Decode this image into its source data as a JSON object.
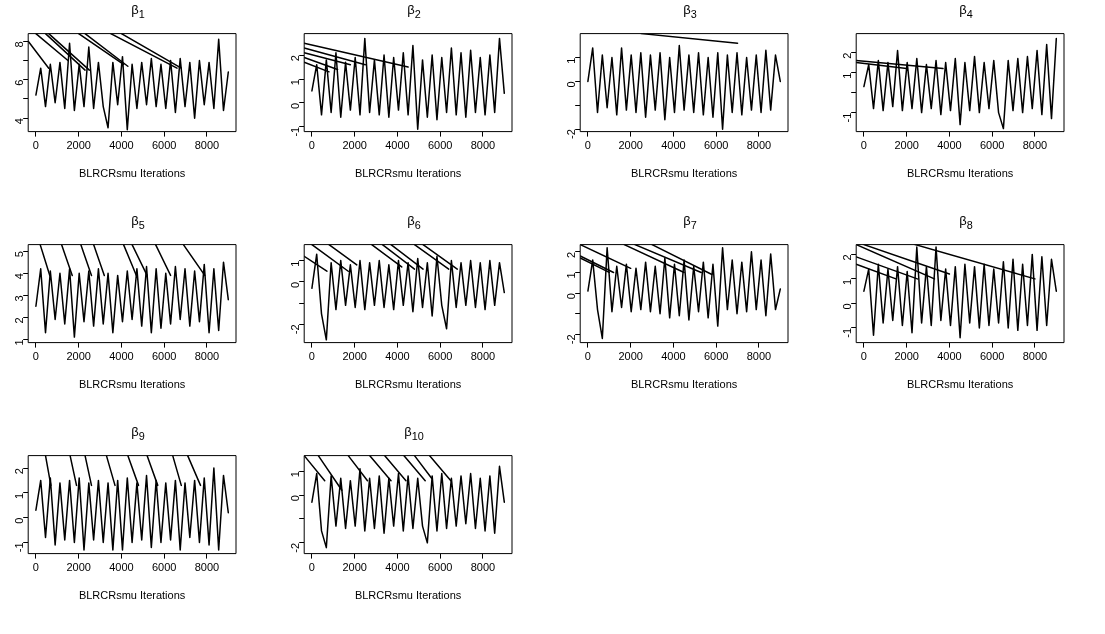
{
  "chart_data": [
    {
      "type": "line",
      "title": "β$_{1}$",
      "xlabel": "BLRCRsmu Iterations",
      "xlim": [
        -360,
        9360
      ],
      "xticks": [
        0,
        2000,
        4000,
        6000,
        8000
      ],
      "ylim": [
        3.3,
        8.4
      ],
      "yticks": [
        4,
        {
          "value": 5,
          "label": null
        },
        6,
        {
          "value": 7,
          "label": null
        },
        8
      ],
      "x": [
        0,
        225,
        450,
        675,
        900,
        1125,
        1350,
        1575,
        1800,
        2025,
        2250,
        2475,
        2700,
        2925,
        3150,
        3375,
        3600,
        3825,
        4050,
        4275,
        4500,
        4725,
        4950,
        5175,
        5400,
        5625,
        5850,
        6075,
        6300,
        6525,
        6750,
        6975,
        7200,
        7425,
        7650,
        7875,
        8100,
        8325,
        8550,
        8775,
        9000
      ],
      "series": [
        {
          "color": "#000000",
          "values": [
            5.2,
            6.6,
            4.6,
            6.8,
            4.8,
            6.9,
            4.5,
            7.9,
            4.4,
            6.8,
            4.6,
            7.7,
            4.5,
            6.9,
            4.6,
            3.5,
            6.9,
            4.7,
            7.2,
            3.4,
            6.8,
            4.5,
            6.9,
            4.7,
            7.1,
            4.6,
            6.8,
            4.5,
            7.0,
            4.3,
            7.1,
            4.6,
            6.9,
            4.0,
            7.0,
            4.7,
            6.9,
            4.5,
            8.1,
            4.4,
            6.4
          ]
        },
        {
          "type": "line",
          "color": "#000000",
          "x": [
            -360,
            600
          ],
          "values": [
            8.0,
            6.6
          ]
        },
        {
          "type": "line",
          "color": "#000000",
          "x": [
            0,
            1500
          ],
          "values": [
            8.4,
            7.0
          ]
        },
        {
          "type": "line",
          "color": "#000000",
          "x": [
            450,
            2300
          ],
          "values": [
            8.4,
            6.5
          ]
        },
        {
          "type": "line",
          "color": "#000000",
          "x": [
            600,
            2500
          ],
          "values": [
            8.4,
            6.5
          ]
        },
        {
          "type": "line",
          "color": "#000000",
          "x": [
            2000,
            4100
          ],
          "values": [
            8.4,
            6.8
          ]
        },
        {
          "type": "line",
          "color": "#000000",
          "x": [
            2300,
            4300
          ],
          "values": [
            8.4,
            6.7
          ]
        },
        {
          "type": "line",
          "color": "#000000",
          "x": [
            3500,
            6600
          ],
          "values": [
            8.4,
            6.6
          ]
        },
        {
          "type": "line",
          "color": "#000000",
          "x": [
            4000,
            6800
          ],
          "values": [
            8.4,
            6.6
          ]
        }
      ]
    },
    {
      "type": "line",
      "title": "β$_{2}$",
      "xlabel": "BLRCRsmu Iterations",
      "xlim": [
        -360,
        9360
      ],
      "xticks": [
        0,
        2000,
        4000,
        6000,
        8000
      ],
      "ylim": [
        -1.2,
        2.9
      ],
      "yticks": [
        -1,
        0,
        1,
        2
      ],
      "x": [
        0,
        225,
        450,
        675,
        900,
        1125,
        1350,
        1575,
        1800,
        2025,
        2250,
        2475,
        2700,
        2925,
        3150,
        3375,
        3600,
        3825,
        4050,
        4275,
        4500,
        4725,
        4950,
        5175,
        5400,
        5625,
        5850,
        6075,
        6300,
        6525,
        6750,
        6975,
        7200,
        7425,
        7650,
        7875,
        8100,
        8325,
        8550,
        8775,
        9000
      ],
      "series": [
        {
          "color": "#000000",
          "values": [
            0.5,
            1.6,
            -0.5,
            1.8,
            -0.4,
            2.1,
            -0.6,
            1.7,
            -0.3,
            1.9,
            -0.5,
            2.7,
            -0.4,
            1.8,
            -0.5,
            2.0,
            -0.6,
            1.9,
            -0.3,
            2.1,
            -0.5,
            2.4,
            -1.1,
            1.8,
            -0.6,
            2.0,
            -0.7,
            1.9,
            -0.4,
            2.3,
            -0.5,
            2.1,
            -0.6,
            2.2,
            -0.4,
            1.9,
            -0.5,
            2.0,
            -0.4,
            2.7,
            0.4
          ]
        },
        {
          "type": "line",
          "color": "#000000",
          "x": [
            -360,
            4500
          ],
          "values": [
            2.5,
            1.5
          ]
        },
        {
          "type": "line",
          "color": "#000000",
          "x": [
            -360,
            2500
          ],
          "values": [
            2.3,
            1.6
          ]
        },
        {
          "type": "line",
          "color": "#000000",
          "x": [
            -360,
            1800
          ],
          "values": [
            2.1,
            1.6
          ]
        },
        {
          "type": "line",
          "color": "#000000",
          "x": [
            -360,
            1200
          ],
          "values": [
            1.9,
            1.4
          ]
        },
        {
          "type": "line",
          "color": "#000000",
          "x": [
            -360,
            800
          ],
          "values": [
            1.7,
            1.3
          ]
        }
      ]
    },
    {
      "type": "line",
      "title": "β$_{3}$",
      "xlabel": "BLRCRsmu Iterations",
      "xlim": [
        -360,
        9360
      ],
      "xticks": [
        0,
        2000,
        4000,
        6000,
        8000
      ],
      "ylim": [
        -2.1,
        2.0
      ],
      "yticks": [
        -2,
        {
          "value": -1,
          "label": null
        },
        0,
        1
      ],
      "x": [
        0,
        225,
        450,
        675,
        900,
        1125,
        1350,
        1575,
        1800,
        2025,
        2250,
        2475,
        2700,
        2925,
        3150,
        3375,
        3600,
        3825,
        4050,
        4275,
        4500,
        4725,
        4950,
        5175,
        5400,
        5625,
        5850,
        6075,
        6300,
        6525,
        6750,
        6975,
        7200,
        7425,
        7650,
        7875,
        8100,
        8325,
        8550,
        8775,
        9000
      ],
      "series": [
        {
          "color": "#000000",
          "values": [
            0.0,
            1.4,
            -1.3,
            1.1,
            -1.1,
            1.0,
            -1.4,
            1.4,
            -1.2,
            1.1,
            -1.3,
            1.2,
            -1.5,
            1.1,
            -1.2,
            1.2,
            -1.6,
            1.0,
            -1.3,
            1.5,
            -1.2,
            1.1,
            -1.3,
            1.2,
            -1.4,
            1.0,
            -1.5,
            1.2,
            -2.0,
            1.1,
            -1.3,
            1.2,
            -1.4,
            1.0,
            -1.2,
            1.1,
            -1.3,
            1.3,
            -1.2,
            1.1,
            0.0
          ]
        },
        {
          "type": "line",
          "color": "#000000",
          "x": [
            2500,
            7000
          ],
          "values": [
            2.0,
            1.6
          ]
        }
      ]
    },
    {
      "type": "line",
      "title": "β$_{4}$",
      "xlabel": "BLRCRsmu Iterations",
      "xlim": [
        -360,
        9360
      ],
      "xticks": [
        0,
        2000,
        4000,
        6000,
        8000
      ],
      "ylim": [
        -1.95,
        2.95
      ],
      "yticks": [
        -1,
        {
          "value": 0,
          "label": null
        },
        1,
        2
      ],
      "x": [
        0,
        225,
        450,
        675,
        900,
        1125,
        1350,
        1575,
        1800,
        2025,
        2250,
        2475,
        2700,
        2925,
        3150,
        3375,
        3600,
        3825,
        4050,
        4275,
        4500,
        4725,
        4950,
        5175,
        5400,
        5625,
        5850,
        6075,
        6300,
        6525,
        6750,
        6975,
        7200,
        7425,
        7650,
        7875,
        8100,
        8325,
        8550,
        8775,
        9000
      ],
      "series": [
        {
          "color": "#000000",
          "values": [
            0.3,
            1.4,
            -0.8,
            1.6,
            -0.9,
            1.5,
            -0.7,
            2.1,
            -0.9,
            1.5,
            -0.8,
            1.7,
            -1.0,
            1.4,
            -0.8,
            1.6,
            -1.1,
            1.5,
            -0.9,
            1.7,
            -1.6,
            1.5,
            -0.9,
            1.8,
            -1.0,
            1.5,
            -0.8,
            1.6,
            -1.0,
            -1.8,
            1.6,
            -0.9,
            1.7,
            -1.0,
            1.8,
            -0.8,
            2.1,
            -1.1,
            2.4,
            -1.3,
            2.7
          ]
        },
        {
          "type": "line",
          "color": "#000000",
          "x": [
            -360,
            3700
          ],
          "values": [
            1.6,
            1.2
          ]
        },
        {
          "type": "line",
          "color": "#000000",
          "x": [
            -360,
            2000
          ],
          "values": [
            1.5,
            1.2
          ]
        }
      ]
    },
    {
      "type": "line",
      "title": "β$_{5}$",
      "xlabel": "BLRCRsmu Iterations",
      "xlim": [
        -360,
        9360
      ],
      "xticks": [
        0,
        2000,
        4000,
        6000,
        8000
      ],
      "ylim": [
        0.85,
        5.3
      ],
      "yticks": [
        1,
        2,
        3,
        4,
        5
      ],
      "x": [
        0,
        225,
        450,
        675,
        900,
        1125,
        1350,
        1575,
        1800,
        2025,
        2250,
        2475,
        2700,
        2925,
        3150,
        3375,
        3600,
        3825,
        4050,
        4275,
        4500,
        4725,
        4950,
        5175,
        5400,
        5625,
        5850,
        6075,
        6300,
        6525,
        6750,
        6975,
        7200,
        7425,
        7650,
        7875,
        8100,
        8325,
        8550,
        8775,
        9000
      ],
      "series": [
        {
          "color": "#000000",
          "values": [
            2.5,
            4.2,
            1.3,
            4.1,
            1.9,
            4.0,
            1.7,
            4.2,
            1.1,
            4.0,
            1.8,
            4.1,
            1.6,
            4.2,
            1.7,
            4.0,
            1.3,
            3.9,
            1.8,
            4.1,
            1.9,
            4.2,
            1.6,
            4.3,
            1.3,
            4.2,
            1.5,
            4.0,
            1.7,
            4.3,
            1.9,
            4.2,
            1.6,
            4.1,
            1.8,
            4.4,
            1.3,
            4.2,
            1.4,
            4.5,
            2.8
          ]
        },
        {
          "type": "line",
          "color": "#000000",
          "x": [
            200,
            650
          ],
          "values": [
            5.3,
            3.9
          ]
        },
        {
          "type": "line",
          "color": "#000000",
          "x": [
            1200,
            1700
          ],
          "values": [
            5.3,
            3.9
          ]
        },
        {
          "type": "line",
          "color": "#000000",
          "x": [
            2100,
            2600
          ],
          "values": [
            5.3,
            3.9
          ]
        },
        {
          "type": "line",
          "color": "#000000",
          "x": [
            2700,
            3200
          ],
          "values": [
            5.3,
            3.9
          ]
        },
        {
          "type": "line",
          "color": "#000000",
          "x": [
            4100,
            4700
          ],
          "values": [
            5.3,
            3.9
          ]
        },
        {
          "type": "line",
          "color": "#000000",
          "x": [
            4500,
            5200
          ],
          "values": [
            5.3,
            3.9
          ]
        },
        {
          "type": "line",
          "color": "#000000",
          "x": [
            5600,
            6300
          ],
          "values": [
            5.3,
            3.9
          ]
        },
        {
          "type": "line",
          "color": "#000000",
          "x": [
            6900,
            7900
          ],
          "values": [
            5.3,
            3.9
          ]
        }
      ]
    },
    {
      "type": "line",
      "title": "β$_{6}$",
      "xlabel": "BLRCRsmu Iterations",
      "xlim": [
        -360,
        9360
      ],
      "xticks": [
        0,
        2000,
        4000,
        6000,
        8000
      ],
      "ylim": [
        -2.85,
        1.75
      ],
      "yticks": [
        -2,
        {
          "value": -1,
          "label": null
        },
        0,
        1
      ],
      "x": [
        0,
        225,
        450,
        675,
        900,
        1125,
        1350,
        1575,
        1800,
        2025,
        2250,
        2475,
        2700,
        2925,
        3150,
        3375,
        3600,
        3825,
        4050,
        4275,
        4500,
        4725,
        4950,
        5175,
        5400,
        5625,
        5850,
        6075,
        6300,
        6525,
        6750,
        6975,
        7200,
        7425,
        7650,
        7875,
        8100,
        8325,
        8550,
        8775,
        9000
      ],
      "series": [
        {
          "color": "#000000",
          "values": [
            -0.3,
            1.3,
            -1.5,
            -2.72,
            0.9,
            -1.3,
            1.0,
            -1.1,
            0.8,
            -1.2,
            1.0,
            -1.3,
            0.9,
            -1.1,
            1.0,
            -1.2,
            0.8,
            -1.3,
            1.0,
            -1.1,
            0.9,
            -1.4,
            1.1,
            -1.2,
            0.9,
            -1.6,
            1.2,
            -1.1,
            -2.2,
            1.0,
            -1.2,
            0.9,
            -1.1,
            1.0,
            -1.2,
            0.9,
            -1.3,
            1.0,
            -1.1,
            0.9,
            -0.5
          ]
        },
        {
          "type": "line",
          "color": "#000000",
          "x": [
            -360,
            700
          ],
          "values": [
            1.2,
            0.5
          ]
        },
        {
          "type": "line",
          "color": "#000000",
          "x": [
            0,
            1700
          ],
          "values": [
            1.75,
            0.5
          ]
        },
        {
          "type": "line",
          "color": "#000000",
          "x": [
            800,
            2100
          ],
          "values": [
            1.75,
            0.8
          ]
        },
        {
          "type": "line",
          "color": "#000000",
          "x": [
            2800,
            4200
          ],
          "values": [
            1.75,
            0.7
          ]
        },
        {
          "type": "line",
          "color": "#000000",
          "x": [
            3300,
            4800
          ],
          "values": [
            1.75,
            0.6
          ]
        },
        {
          "type": "line",
          "color": "#000000",
          "x": [
            3700,
            5200
          ],
          "values": [
            1.75,
            0.6
          ]
        },
        {
          "type": "line",
          "color": "#000000",
          "x": [
            4800,
            6400
          ],
          "values": [
            1.75,
            0.6
          ]
        },
        {
          "type": "line",
          "color": "#000000",
          "x": [
            5200,
            6800
          ],
          "values": [
            1.75,
            0.6
          ]
        }
      ]
    },
    {
      "type": "line",
      "title": "β$_{7}$",
      "xlabel": "BLRCRsmu Iterations",
      "xlim": [
        -360,
        9360
      ],
      "xticks": [
        0,
        2000,
        4000,
        6000,
        8000
      ],
      "ylim": [
        -2.4,
        2.35
      ],
      "yticks": [
        -2,
        {
          "value": -1,
          "label": null
        },
        0,
        1,
        2
      ],
      "x": [
        0,
        225,
        450,
        675,
        900,
        1125,
        1350,
        1575,
        1800,
        2025,
        2250,
        2475,
        2700,
        2925,
        3150,
        3375,
        3600,
        3825,
        4050,
        4275,
        4500,
        4725,
        4950,
        5175,
        5400,
        5625,
        5850,
        6075,
        6300,
        6525,
        6750,
        6975,
        7200,
        7425,
        7650,
        7875,
        8100,
        8325,
        8550,
        8775,
        9000
      ],
      "series": [
        {
          "color": "#000000",
          "values": [
            0.1,
            1.6,
            -0.8,
            -2.2,
            2.2,
            -0.9,
            1.3,
            -0.7,
            1.4,
            -0.9,
            1.2,
            -0.8,
            1.5,
            -0.9,
            1.3,
            -1.0,
            1.7,
            -1.2,
            1.4,
            -1.1,
            1.6,
            -1.3,
            1.3,
            -0.9,
            1.5,
            -1.2,
            1.4,
            -1.6,
            2.2,
            -0.8,
            1.6,
            -1.0,
            1.5,
            -0.9,
            2.0,
            -0.8,
            1.6,
            -1.1,
            1.9,
            -0.8,
            0.2
          ]
        },
        {
          "type": "line",
          "color": "#000000",
          "x": [
            -360,
            2000
          ],
          "values": [
            2.35,
            1.2
          ]
        },
        {
          "type": "line",
          "color": "#000000",
          "x": [
            -360,
            1200
          ],
          "values": [
            1.8,
            1.0
          ]
        },
        {
          "type": "line",
          "color": "#000000",
          "x": [
            -360,
            1000
          ],
          "values": [
            1.7,
            1.0
          ]
        },
        {
          "type": "line",
          "color": "#000000",
          "x": [
            1700,
            4500
          ],
          "values": [
            2.35,
            1.0
          ]
        },
        {
          "type": "line",
          "color": "#000000",
          "x": [
            2200,
            5300
          ],
          "values": [
            2.35,
            1.0
          ]
        },
        {
          "type": "line",
          "color": "#000000",
          "x": [
            3000,
            5800
          ],
          "values": [
            2.35,
            0.9
          ]
        }
      ]
    },
    {
      "type": "line",
      "title": "β$_{8}$",
      "xlabel": "BLRCRsmu Iterations",
      "xlim": [
        -360,
        9360
      ],
      "xticks": [
        0,
        2000,
        4000,
        6000,
        8000
      ],
      "ylim": [
        -1.6,
        2.4
      ],
      "yticks": [
        -1,
        0,
        1,
        2
      ],
      "x": [
        0,
        225,
        450,
        675,
        900,
        1125,
        1350,
        1575,
        1800,
        2025,
        2250,
        2475,
        2700,
        2925,
        3150,
        3375,
        3600,
        3825,
        4050,
        4275,
        4500,
        4725,
        4950,
        5175,
        5400,
        5625,
        5850,
        6075,
        6300,
        6525,
        6750,
        6975,
        7200,
        7425,
        7650,
        7875,
        8100,
        8325,
        8550,
        8775,
        9000
      ],
      "series": [
        {
          "color": "#000000",
          "values": [
            0.5,
            1.4,
            -1.3,
            1.6,
            -0.8,
            1.4,
            -0.7,
            1.5,
            -0.9,
            1.3,
            -1.2,
            2.3,
            -0.8,
            1.5,
            -0.9,
            2.3,
            -0.7,
            1.4,
            -0.9,
            1.5,
            -1.4,
            1.6,
            -0.8,
            1.5,
            -1.0,
            1.6,
            -0.9,
            1.4,
            -0.8,
            1.7,
            -1.0,
            1.8,
            -1.1,
            1.6,
            -0.9,
            2.0,
            -1.1,
            1.9,
            -0.9,
            1.8,
            0.5
          ]
        },
        {
          "type": "line",
          "color": "#000000",
          "x": [
            -360,
            3300
          ],
          "values": [
            2.4,
            1.0
          ]
        },
        {
          "type": "line",
          "color": "#000000",
          "x": [
            0,
            4000
          ],
          "values": [
            2.4,
            1.2
          ]
        },
        {
          "type": "line",
          "color": "#000000",
          "x": [
            -360,
            2500
          ],
          "values": [
            1.9,
            1.0
          ]
        },
        {
          "type": "line",
          "color": "#000000",
          "x": [
            -360,
            1500
          ],
          "values": [
            1.6,
            1.0
          ]
        },
        {
          "type": "line",
          "color": "#000000",
          "x": [
            2400,
            8000
          ],
          "values": [
            2.4,
            1.0
          ]
        }
      ]
    },
    {
      "type": "line",
      "title": "β$_{9}$",
      "xlabel": "BLRCRsmu Iterations",
      "xlim": [
        -360,
        9360
      ],
      "xticks": [
        0,
        2000,
        4000,
        6000,
        8000
      ],
      "ylim": [
        -1.45,
        2.5
      ],
      "yticks": [
        -1,
        0,
        1,
        2
      ],
      "x": [
        0,
        225,
        450,
        675,
        900,
        1125,
        1350,
        1575,
        1800,
        2025,
        2250,
        2475,
        2700,
        2925,
        3150,
        3375,
        3600,
        3825,
        4050,
        4275,
        4500,
        4725,
        4950,
        5175,
        5400,
        5625,
        5850,
        6075,
        6300,
        6525,
        6750,
        6975,
        7200,
        7425,
        7650,
        7875,
        8100,
        8325,
        8550,
        8775,
        9000
      ],
      "series": [
        {
          "color": "#000000",
          "values": [
            0.3,
            1.5,
            -0.8,
            1.6,
            -1.1,
            1.4,
            -0.9,
            1.5,
            -1.0,
            1.6,
            -1.3,
            1.4,
            -0.9,
            1.5,
            -1.0,
            1.4,
            -1.3,
            1.5,
            -1.3,
            1.6,
            -1.0,
            1.4,
            -0.9,
            1.7,
            -1.2,
            1.5,
            -1.0,
            1.4,
            -0.9,
            1.5,
            -1.3,
            1.4,
            -0.8,
            1.5,
            -1.0,
            1.6,
            -1.1,
            2.0,
            -1.3,
            1.7,
            0.2
          ]
        },
        {
          "type": "line",
          "color": "#000000",
          "x": [
            450,
            700
          ],
          "values": [
            2.5,
            1.3
          ]
        },
        {
          "type": "line",
          "color": "#000000",
          "x": [
            1600,
            1900
          ],
          "values": [
            2.5,
            1.3
          ]
        },
        {
          "type": "line",
          "color": "#000000",
          "x": [
            2300,
            2600
          ],
          "values": [
            2.5,
            1.3
          ]
        },
        {
          "type": "line",
          "color": "#000000",
          "x": [
            3300,
            3700
          ],
          "values": [
            2.5,
            1.3
          ]
        },
        {
          "type": "line",
          "color": "#000000",
          "x": [
            4300,
            4800
          ],
          "values": [
            2.5,
            1.3
          ]
        },
        {
          "type": "line",
          "color": "#000000",
          "x": [
            5200,
            5700
          ],
          "values": [
            2.5,
            1.3
          ]
        },
        {
          "type": "line",
          "color": "#000000",
          "x": [
            6400,
            6800
          ],
          "values": [
            2.5,
            1.3
          ]
        },
        {
          "type": "line",
          "color": "#000000",
          "x": [
            7100,
            7700
          ],
          "values": [
            2.5,
            1.3
          ]
        }
      ]
    },
    {
      "type": "line",
      "title": "β$_{10}$",
      "xlabel": "BLRCRsmu Iterations",
      "xlim": [
        -360,
        9360
      ],
      "xticks": [
        0,
        2000,
        4000,
        6000,
        8000
      ],
      "ylim": [
        -2.45,
        1.65
      ],
      "yticks": [
        -2,
        {
          "value": -1,
          "label": null
        },
        0,
        1
      ],
      "x": [
        0,
        225,
        450,
        675,
        900,
        1125,
        1350,
        1575,
        1800,
        2025,
        2250,
        2475,
        2700,
        2925,
        3150,
        3375,
        3600,
        3825,
        4050,
        4275,
        4500,
        4725,
        4950,
        5175,
        5400,
        5625,
        5850,
        6075,
        6300,
        6525,
        6750,
        6975,
        7200,
        7425,
        7650,
        7875,
        8100,
        8325,
        8550,
        8775,
        9000
      ],
      "series": [
        {
          "color": "#000000",
          "values": [
            -0.3,
            0.9,
            -1.5,
            -2.2,
            0.8,
            -1.3,
            0.7,
            -1.4,
            0.6,
            -1.3,
            1.1,
            -1.5,
            0.7,
            -1.4,
            0.8,
            -1.6,
            0.7,
            -1.3,
            0.9,
            -1.5,
            0.8,
            -1.4,
            0.7,
            -1.3,
            -2.0,
            0.8,
            -1.5,
            0.9,
            -1.4,
            0.7,
            -1.3,
            0.8,
            -1.2,
            0.9,
            -1.4,
            0.7,
            -1.5,
            0.8,
            -1.6,
            1.2,
            -0.3
          ]
        },
        {
          "type": "line",
          "color": "#000000",
          "x": [
            -360,
            600
          ],
          "values": [
            1.65,
            0.6
          ]
        },
        {
          "type": "line",
          "color": "#000000",
          "x": [
            300,
            1400
          ],
          "values": [
            1.65,
            0.2
          ]
        },
        {
          "type": "line",
          "color": "#000000",
          "x": [
            1700,
            2600
          ],
          "values": [
            1.65,
            0.6
          ]
        },
        {
          "type": "line",
          "color": "#000000",
          "x": [
            2700,
            3700
          ],
          "values": [
            1.65,
            0.6
          ]
        },
        {
          "type": "line",
          "color": "#000000",
          "x": [
            3400,
            4400
          ],
          "values": [
            1.65,
            0.6
          ]
        },
        {
          "type": "line",
          "color": "#000000",
          "x": [
            4300,
            5300
          ],
          "values": [
            1.65,
            0.6
          ]
        },
        {
          "type": "line",
          "color": "#000000",
          "x": [
            4800,
            5600
          ],
          "values": [
            1.65,
            0.7
          ]
        },
        {
          "type": "line",
          "color": "#000000",
          "x": [
            5500,
            6500
          ],
          "values": [
            1.65,
            0.6
          ]
        }
      ]
    }
  ]
}
